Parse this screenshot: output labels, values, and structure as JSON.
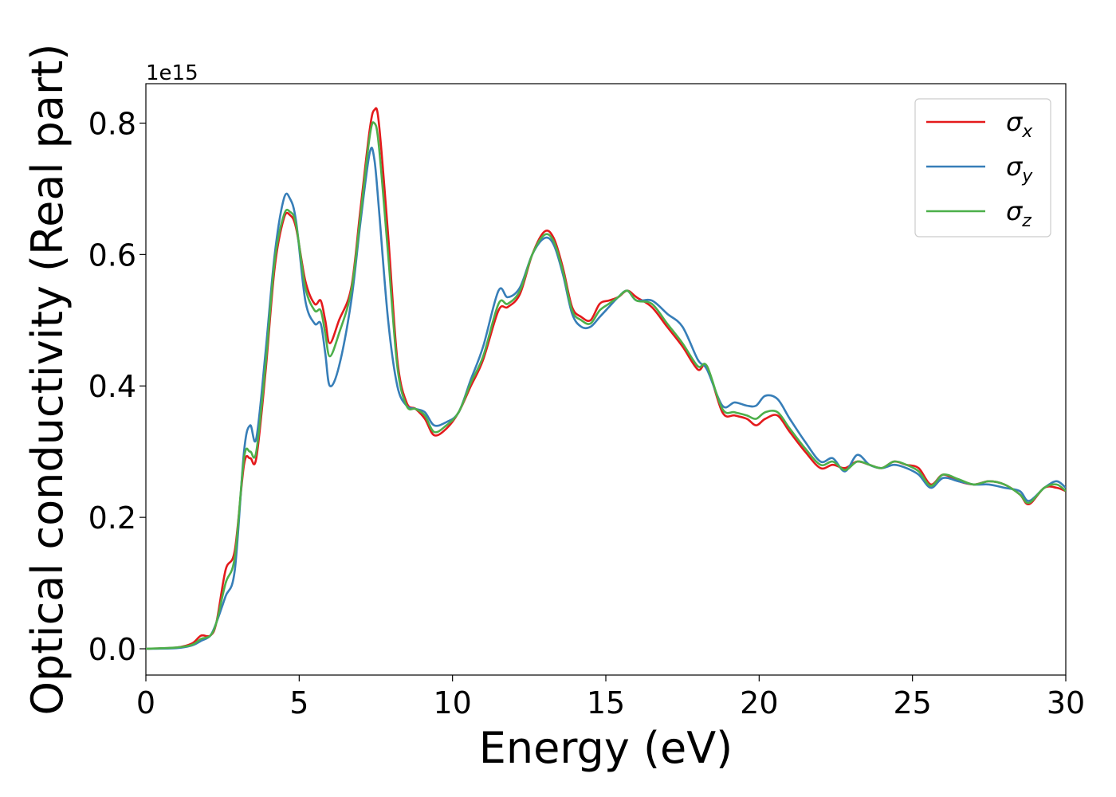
{
  "chart_data": {
    "type": "line",
    "title": "",
    "xlabel": "Energy (eV)",
    "ylabel": "Optical conductivity (Real part)",
    "y_offset_label": "1e15",
    "xlim": [
      0,
      30
    ],
    "ylim": [
      -0.04,
      0.86
    ],
    "x_ticks": [
      0,
      5,
      10,
      15,
      20,
      25,
      30
    ],
    "x_tick_labels": [
      "0",
      "5",
      "10",
      "15",
      "20",
      "25",
      "30"
    ],
    "y_ticks": [
      0.0,
      0.2,
      0.4,
      0.6,
      0.8
    ],
    "y_tick_labels": [
      "0.0",
      "0.2",
      "0.4",
      "0.6",
      "0.8"
    ],
    "grid": false,
    "legend_position": "top-right",
    "series": [
      {
        "name": "σx",
        "symbol": "σ",
        "subscript": "x",
        "color": "#e41a1c",
        "points": [
          [
            0,
            0
          ],
          [
            1,
            0.002
          ],
          [
            1.5,
            0.008
          ],
          [
            1.8,
            0.02
          ],
          [
            2.1,
            0.02
          ],
          [
            2.3,
            0.04
          ],
          [
            2.6,
            0.12
          ],
          [
            2.9,
            0.15
          ],
          [
            3.2,
            0.28
          ],
          [
            3.4,
            0.29
          ],
          [
            3.6,
            0.29
          ],
          [
            3.9,
            0.42
          ],
          [
            4.2,
            0.58
          ],
          [
            4.5,
            0.655
          ],
          [
            4.7,
            0.66
          ],
          [
            4.9,
            0.64
          ],
          [
            5.2,
            0.56
          ],
          [
            5.5,
            0.525
          ],
          [
            5.7,
            0.53
          ],
          [
            5.85,
            0.5
          ],
          [
            6.0,
            0.465
          ],
          [
            6.3,
            0.5
          ],
          [
            6.7,
            0.55
          ],
          [
            7.0,
            0.67
          ],
          [
            7.3,
            0.79
          ],
          [
            7.45,
            0.82
          ],
          [
            7.6,
            0.8
          ],
          [
            7.9,
            0.63
          ],
          [
            8.2,
            0.44
          ],
          [
            8.5,
            0.375
          ],
          [
            8.8,
            0.365
          ],
          [
            9.1,
            0.35
          ],
          [
            9.4,
            0.325
          ],
          [
            9.8,
            0.335
          ],
          [
            10.2,
            0.36
          ],
          [
            10.6,
            0.4
          ],
          [
            11.0,
            0.44
          ],
          [
            11.5,
            0.515
          ],
          [
            11.8,
            0.52
          ],
          [
            12.2,
            0.54
          ],
          [
            12.6,
            0.6
          ],
          [
            13.0,
            0.635
          ],
          [
            13.3,
            0.625
          ],
          [
            13.6,
            0.58
          ],
          [
            13.9,
            0.52
          ],
          [
            14.2,
            0.505
          ],
          [
            14.5,
            0.5
          ],
          [
            14.8,
            0.525
          ],
          [
            15.1,
            0.53
          ],
          [
            15.4,
            0.535
          ],
          [
            15.7,
            0.545
          ],
          [
            16.0,
            0.535
          ],
          [
            16.5,
            0.52
          ],
          [
            17.0,
            0.49
          ],
          [
            17.5,
            0.46
          ],
          [
            18.0,
            0.425
          ],
          [
            18.3,
            0.43
          ],
          [
            18.8,
            0.36
          ],
          [
            19.2,
            0.355
          ],
          [
            19.6,
            0.35
          ],
          [
            19.9,
            0.34
          ],
          [
            20.2,
            0.35
          ],
          [
            20.6,
            0.355
          ],
          [
            21.0,
            0.33
          ],
          [
            21.5,
            0.3
          ],
          [
            22.0,
            0.275
          ],
          [
            22.4,
            0.28
          ],
          [
            22.8,
            0.275
          ],
          [
            23.2,
            0.285
          ],
          [
            23.6,
            0.28
          ],
          [
            24.0,
            0.275
          ],
          [
            24.4,
            0.285
          ],
          [
            24.8,
            0.28
          ],
          [
            25.2,
            0.275
          ],
          [
            25.6,
            0.25
          ],
          [
            26.0,
            0.265
          ],
          [
            26.5,
            0.255
          ],
          [
            27.0,
            0.25
          ],
          [
            27.5,
            0.255
          ],
          [
            28.0,
            0.25
          ],
          [
            28.5,
            0.235
          ],
          [
            28.8,
            0.22
          ],
          [
            29.3,
            0.245
          ],
          [
            29.7,
            0.245
          ],
          [
            30,
            0.24
          ]
        ]
      },
      {
        "name": "σy",
        "symbol": "σ",
        "subscript": "y",
        "color": "#377eb8",
        "points": [
          [
            0,
            0
          ],
          [
            1,
            0.001
          ],
          [
            1.5,
            0.005
          ],
          [
            1.8,
            0.012
          ],
          [
            2.1,
            0.02
          ],
          [
            2.3,
            0.04
          ],
          [
            2.6,
            0.08
          ],
          [
            2.9,
            0.12
          ],
          [
            3.2,
            0.3
          ],
          [
            3.4,
            0.34
          ],
          [
            3.6,
            0.32
          ],
          [
            3.9,
            0.45
          ],
          [
            4.2,
            0.6
          ],
          [
            4.5,
            0.685
          ],
          [
            4.7,
            0.685
          ],
          [
            4.9,
            0.65
          ],
          [
            5.2,
            0.53
          ],
          [
            5.5,
            0.495
          ],
          [
            5.7,
            0.495
          ],
          [
            5.85,
            0.45
          ],
          [
            6.0,
            0.4
          ],
          [
            6.3,
            0.43
          ],
          [
            6.7,
            0.53
          ],
          [
            7.0,
            0.65
          ],
          [
            7.3,
            0.755
          ],
          [
            7.45,
            0.745
          ],
          [
            7.6,
            0.67
          ],
          [
            7.9,
            0.5
          ],
          [
            8.2,
            0.4
          ],
          [
            8.5,
            0.37
          ],
          [
            8.8,
            0.365
          ],
          [
            9.1,
            0.36
          ],
          [
            9.4,
            0.34
          ],
          [
            9.8,
            0.345
          ],
          [
            10.2,
            0.36
          ],
          [
            10.6,
            0.41
          ],
          [
            11.0,
            0.46
          ],
          [
            11.5,
            0.545
          ],
          [
            11.8,
            0.535
          ],
          [
            12.2,
            0.55
          ],
          [
            12.6,
            0.6
          ],
          [
            13.0,
            0.625
          ],
          [
            13.3,
            0.615
          ],
          [
            13.6,
            0.57
          ],
          [
            13.9,
            0.51
          ],
          [
            14.2,
            0.49
          ],
          [
            14.5,
            0.49
          ],
          [
            14.8,
            0.505
          ],
          [
            15.1,
            0.52
          ],
          [
            15.4,
            0.535
          ],
          [
            15.7,
            0.545
          ],
          [
            16.0,
            0.53
          ],
          [
            16.5,
            0.53
          ],
          [
            17.0,
            0.51
          ],
          [
            17.5,
            0.49
          ],
          [
            18.0,
            0.44
          ],
          [
            18.3,
            0.425
          ],
          [
            18.8,
            0.37
          ],
          [
            19.2,
            0.375
          ],
          [
            19.6,
            0.37
          ],
          [
            19.9,
            0.37
          ],
          [
            20.2,
            0.385
          ],
          [
            20.6,
            0.38
          ],
          [
            21.0,
            0.35
          ],
          [
            21.5,
            0.315
          ],
          [
            22.0,
            0.285
          ],
          [
            22.4,
            0.29
          ],
          [
            22.8,
            0.27
          ],
          [
            23.2,
            0.295
          ],
          [
            23.6,
            0.28
          ],
          [
            24.0,
            0.275
          ],
          [
            24.4,
            0.28
          ],
          [
            24.8,
            0.275
          ],
          [
            25.2,
            0.265
          ],
          [
            25.6,
            0.245
          ],
          [
            26.0,
            0.26
          ],
          [
            26.5,
            0.255
          ],
          [
            27.0,
            0.25
          ],
          [
            27.5,
            0.25
          ],
          [
            28.0,
            0.245
          ],
          [
            28.5,
            0.24
          ],
          [
            28.8,
            0.225
          ],
          [
            29.3,
            0.245
          ],
          [
            29.7,
            0.255
          ],
          [
            30,
            0.245
          ]
        ]
      },
      {
        "name": "σz",
        "symbol": "σ",
        "subscript": "z",
        "color": "#4daf4a",
        "points": [
          [
            0,
            0
          ],
          [
            1,
            0.002
          ],
          [
            1.5,
            0.006
          ],
          [
            1.8,
            0.015
          ],
          [
            2.1,
            0.02
          ],
          [
            2.3,
            0.04
          ],
          [
            2.6,
            0.1
          ],
          [
            2.9,
            0.14
          ],
          [
            3.2,
            0.29
          ],
          [
            3.4,
            0.3
          ],
          [
            3.6,
            0.3
          ],
          [
            3.9,
            0.43
          ],
          [
            4.2,
            0.59
          ],
          [
            4.5,
            0.66
          ],
          [
            4.7,
            0.665
          ],
          [
            4.9,
            0.645
          ],
          [
            5.2,
            0.55
          ],
          [
            5.5,
            0.515
          ],
          [
            5.7,
            0.515
          ],
          [
            5.85,
            0.48
          ],
          [
            6.0,
            0.445
          ],
          [
            6.3,
            0.48
          ],
          [
            6.7,
            0.545
          ],
          [
            7.0,
            0.66
          ],
          [
            7.3,
            0.78
          ],
          [
            7.45,
            0.8
          ],
          [
            7.6,
            0.765
          ],
          [
            7.9,
            0.6
          ],
          [
            8.2,
            0.43
          ],
          [
            8.5,
            0.37
          ],
          [
            8.8,
            0.365
          ],
          [
            9.1,
            0.355
          ],
          [
            9.4,
            0.33
          ],
          [
            9.8,
            0.34
          ],
          [
            10.2,
            0.36
          ],
          [
            10.6,
            0.405
          ],
          [
            11.0,
            0.445
          ],
          [
            11.5,
            0.525
          ],
          [
            11.8,
            0.525
          ],
          [
            12.2,
            0.545
          ],
          [
            12.6,
            0.6
          ],
          [
            13.0,
            0.63
          ],
          [
            13.3,
            0.62
          ],
          [
            13.6,
            0.575
          ],
          [
            13.9,
            0.515
          ],
          [
            14.2,
            0.5
          ],
          [
            14.5,
            0.495
          ],
          [
            14.8,
            0.515
          ],
          [
            15.1,
            0.525
          ],
          [
            15.4,
            0.535
          ],
          [
            15.7,
            0.545
          ],
          [
            16.0,
            0.53
          ],
          [
            16.5,
            0.525
          ],
          [
            17.0,
            0.495
          ],
          [
            17.5,
            0.465
          ],
          [
            18.0,
            0.43
          ],
          [
            18.3,
            0.43
          ],
          [
            18.8,
            0.365
          ],
          [
            19.2,
            0.36
          ],
          [
            19.6,
            0.355
          ],
          [
            19.9,
            0.35
          ],
          [
            20.2,
            0.36
          ],
          [
            20.6,
            0.36
          ],
          [
            21.0,
            0.335
          ],
          [
            21.5,
            0.305
          ],
          [
            22.0,
            0.28
          ],
          [
            22.4,
            0.285
          ],
          [
            22.8,
            0.272
          ],
          [
            23.2,
            0.285
          ],
          [
            23.6,
            0.28
          ],
          [
            24.0,
            0.275
          ],
          [
            24.4,
            0.285
          ],
          [
            24.8,
            0.28
          ],
          [
            25.2,
            0.27
          ],
          [
            25.6,
            0.248
          ],
          [
            26.0,
            0.265
          ],
          [
            26.5,
            0.258
          ],
          [
            27.0,
            0.25
          ],
          [
            27.5,
            0.255
          ],
          [
            28.0,
            0.25
          ],
          [
            28.5,
            0.235
          ],
          [
            28.8,
            0.222
          ],
          [
            29.3,
            0.245
          ],
          [
            29.7,
            0.25
          ],
          [
            30,
            0.24
          ]
        ]
      }
    ]
  }
}
